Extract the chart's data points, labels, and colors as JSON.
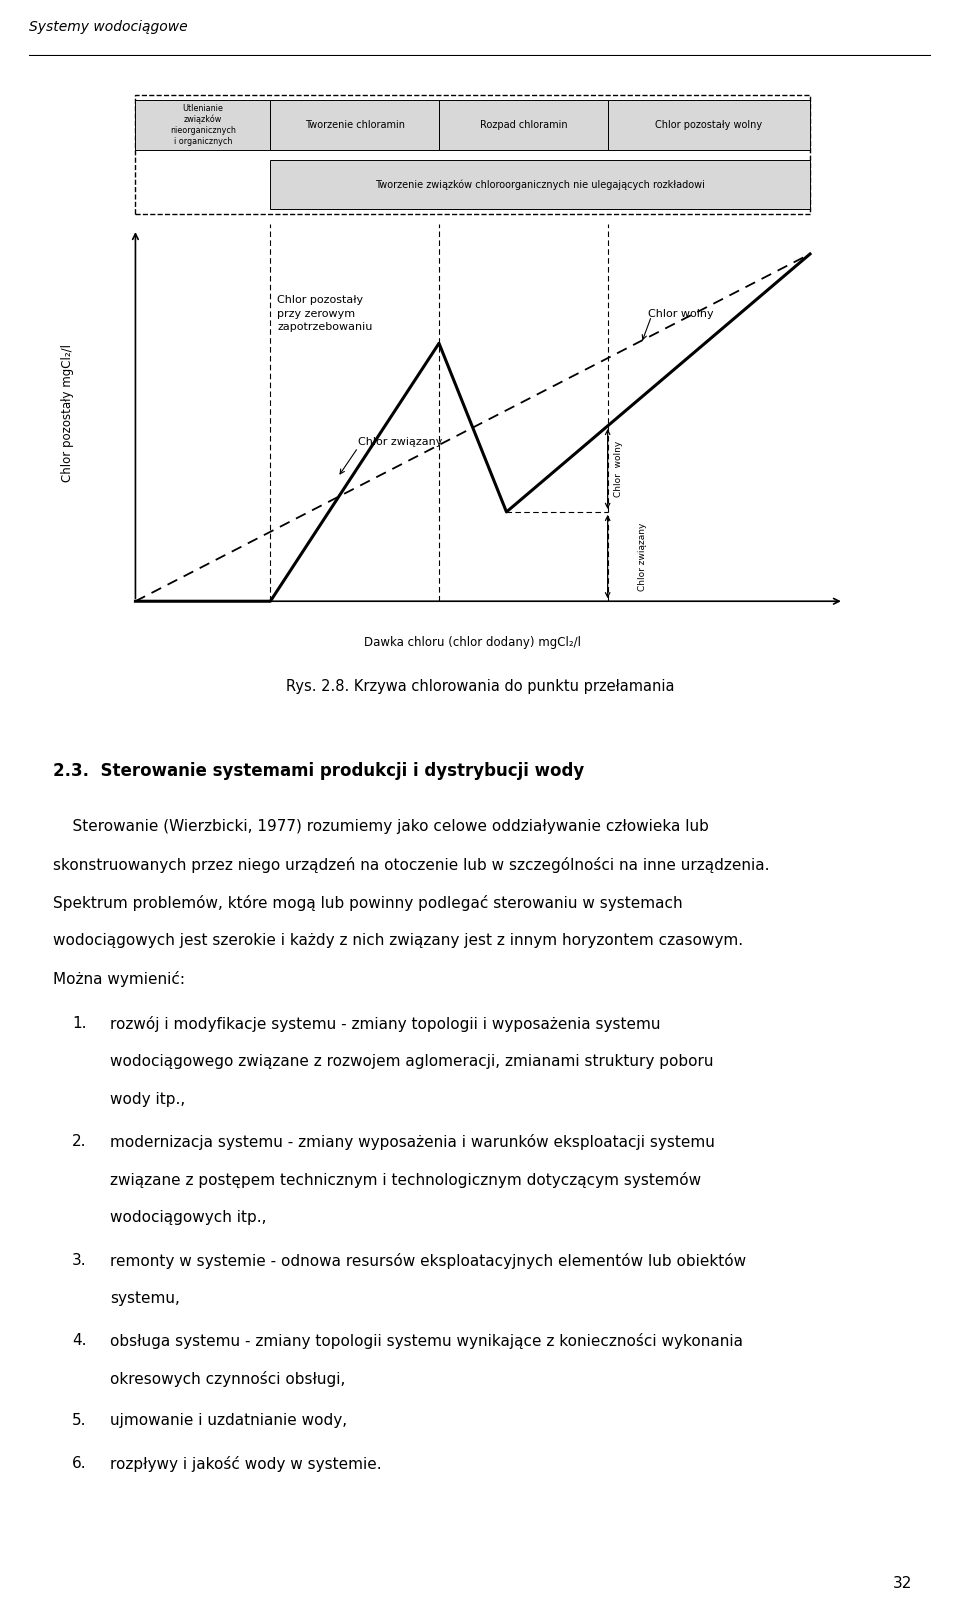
{
  "header_text": "Systemy wodociągowe",
  "page_number": "32",
  "figure_caption": "Rys. 2.8. Krzywa chlorowania do punktu przełamania",
  "section_title": "2.3.  Sterowanie systemami produkcji i dystrybucji wody",
  "ylabel": "Chlor pozostały mgCl₂/l",
  "xlabel": "Dawka chloru (chlor dodany) mgCl₂/l",
  "label_chlor_pozostaly_zerowe": "Chlor pozostały\nprzy zerowym\nzapotrzebowaniu",
  "label_chlor_wolny_upper": "Chlor wolny",
  "label_chlor_wiazany": "Chlor związany",
  "label_chlor_wolny_right": "Chlor  wolny",
  "label_chlor_wiazany_right": "Chlor związany",
  "box1_text": "Utlenianie\nzwiązków\nnieorganicznych\ni organicznych",
  "box2_text": "Tworzenie chloramin",
  "box3_text": "Rozpad chloramin",
  "box4_text": "Chlor pozostały wolny",
  "box5_text": "Tworzenie związków chloroorganicznych nie ulegających rozkładowi",
  "para_lines": [
    "    Sterowanie (Wierzbicki, 1977) rozumiemy jako celowe oddziaływanie człowieka lub",
    "skonstruowanych przez niego urządzeń na otoczenie lub w szczególności na inne urządzenia.",
    "Spektrum problemów, które mogą lub powinny podlegać sterowaniu w systemach",
    "wodociągowych jest szerokie i każdy z nich związany jest z innym horyzontem czasowym.",
    "Można wymienić:"
  ],
  "list_items": [
    [
      "1.",
      "rozwój i modyfikacje systemu - zmiany topologii i wyposażenia systemu",
      "wodociągowego związane z rozwojem aglomeracji, zmianami struktury poboru",
      "wody itp.,"
    ],
    [
      "2.",
      "modernizacja systemu - zmiany wyposażenia i warunków eksploatacji systemu",
      "związane z postępem technicznym i technologicznym dotyczącym systemów",
      "wodociągowych itp.,"
    ],
    [
      "3.",
      "remonty w systemie - odnowa resursów eksploatacyjnych elementów lub obiektów",
      "systemu,"
    ],
    [
      "4.",
      "obsługa systemu - zmiany topologii systemu wynikające z konieczności wykonania",
      "okresowych czynności obsługi,"
    ],
    [
      "5.",
      "ujmowanie i uzdatnianie wody,"
    ],
    [
      "6.",
      "rozpływy i jakość wody w systemie."
    ]
  ]
}
